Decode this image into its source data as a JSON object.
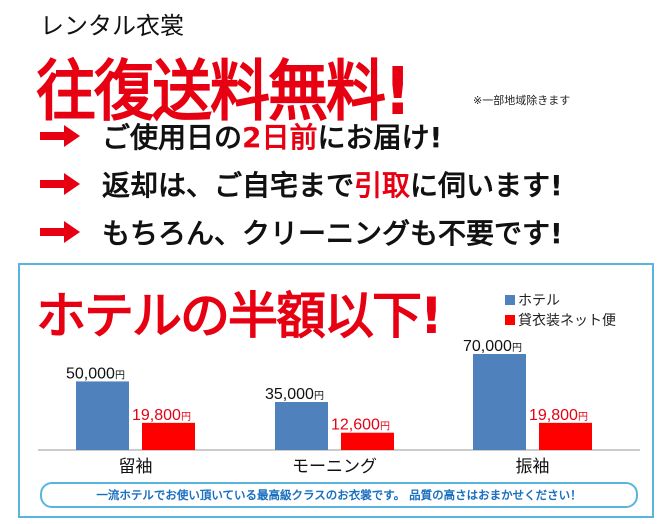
{
  "header": {
    "subtitle": "レンタル衣裳",
    "headline": "往復送料無料!",
    "note": "※一部地域除きます"
  },
  "features": [
    {
      "icon": "arrow-right-icon",
      "parts": [
        {
          "text": "ご使用日の",
          "red": false
        },
        {
          "text": "2日前",
          "red": true
        },
        {
          "text": "にお届け!",
          "red": false
        }
      ]
    },
    {
      "icon": "arrow-right-icon",
      "parts": [
        {
          "text": "返却は、ご自宅まで",
          "red": false
        },
        {
          "text": "引取",
          "red": true
        },
        {
          "text": "に伺います!",
          "red": false
        }
      ]
    },
    {
      "icon": "arrow-right-icon",
      "parts": [
        {
          "text": "もちろん、クリーニングも不要です!",
          "red": false
        }
      ]
    }
  ],
  "comparison": {
    "title": "ホテルの半額以下!",
    "footer": "一流ホテルでお使い頂いている最高級クラスのお衣裳です。 品質の高さはおまかせください！"
  },
  "colors": {
    "accent_red": "#e60012",
    "hotel_blue": "#4f81bd",
    "rental_red": "#ff0000",
    "border_blue": "#5ab4e0"
  },
  "chart_data": {
    "type": "bar",
    "categories": [
      "留袖",
      "モーニング",
      "振袖"
    ],
    "series": [
      {
        "name": "ホテル",
        "values": [
          50000,
          35000,
          70000
        ],
        "labels": [
          "50,000",
          "35,000",
          "70,000"
        ],
        "color": "#4f81bd"
      },
      {
        "name": "貸衣装ネット便",
        "values": [
          19800,
          12600,
          19800
        ],
        "labels": [
          "19,800",
          "12,600",
          "19,800"
        ],
        "color": "#ff0000"
      }
    ],
    "unit": "円",
    "ylim": [
      0,
      70000
    ],
    "grid": false,
    "legend": "top-right"
  }
}
